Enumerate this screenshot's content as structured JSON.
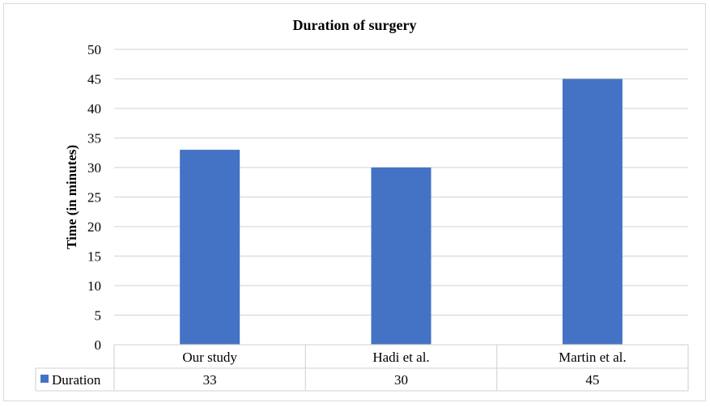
{
  "chart_data": {
    "type": "bar",
    "title": "Duration of surgery",
    "xlabel": "",
    "ylabel": "Time (in minutes)",
    "categories": [
      "Our study",
      "Hadi et al.",
      "Martin et al."
    ],
    "series": [
      {
        "name": "Duration",
        "values": [
          33,
          30,
          45
        ],
        "value_labels": [
          "33",
          "30",
          "45"
        ],
        "color": "#4472c4"
      }
    ],
    "ylim": [
      0,
      50
    ],
    "y_ticks": [
      0,
      5,
      10,
      15,
      20,
      25,
      30,
      35,
      40,
      45,
      50
    ],
    "y_tick_labels": [
      "0",
      "5",
      "10",
      "15",
      "20",
      "25",
      "30",
      "35",
      "40",
      "45",
      "50"
    ],
    "grid": true,
    "grid_color": "#d9d9d9",
    "data_table": true
  }
}
